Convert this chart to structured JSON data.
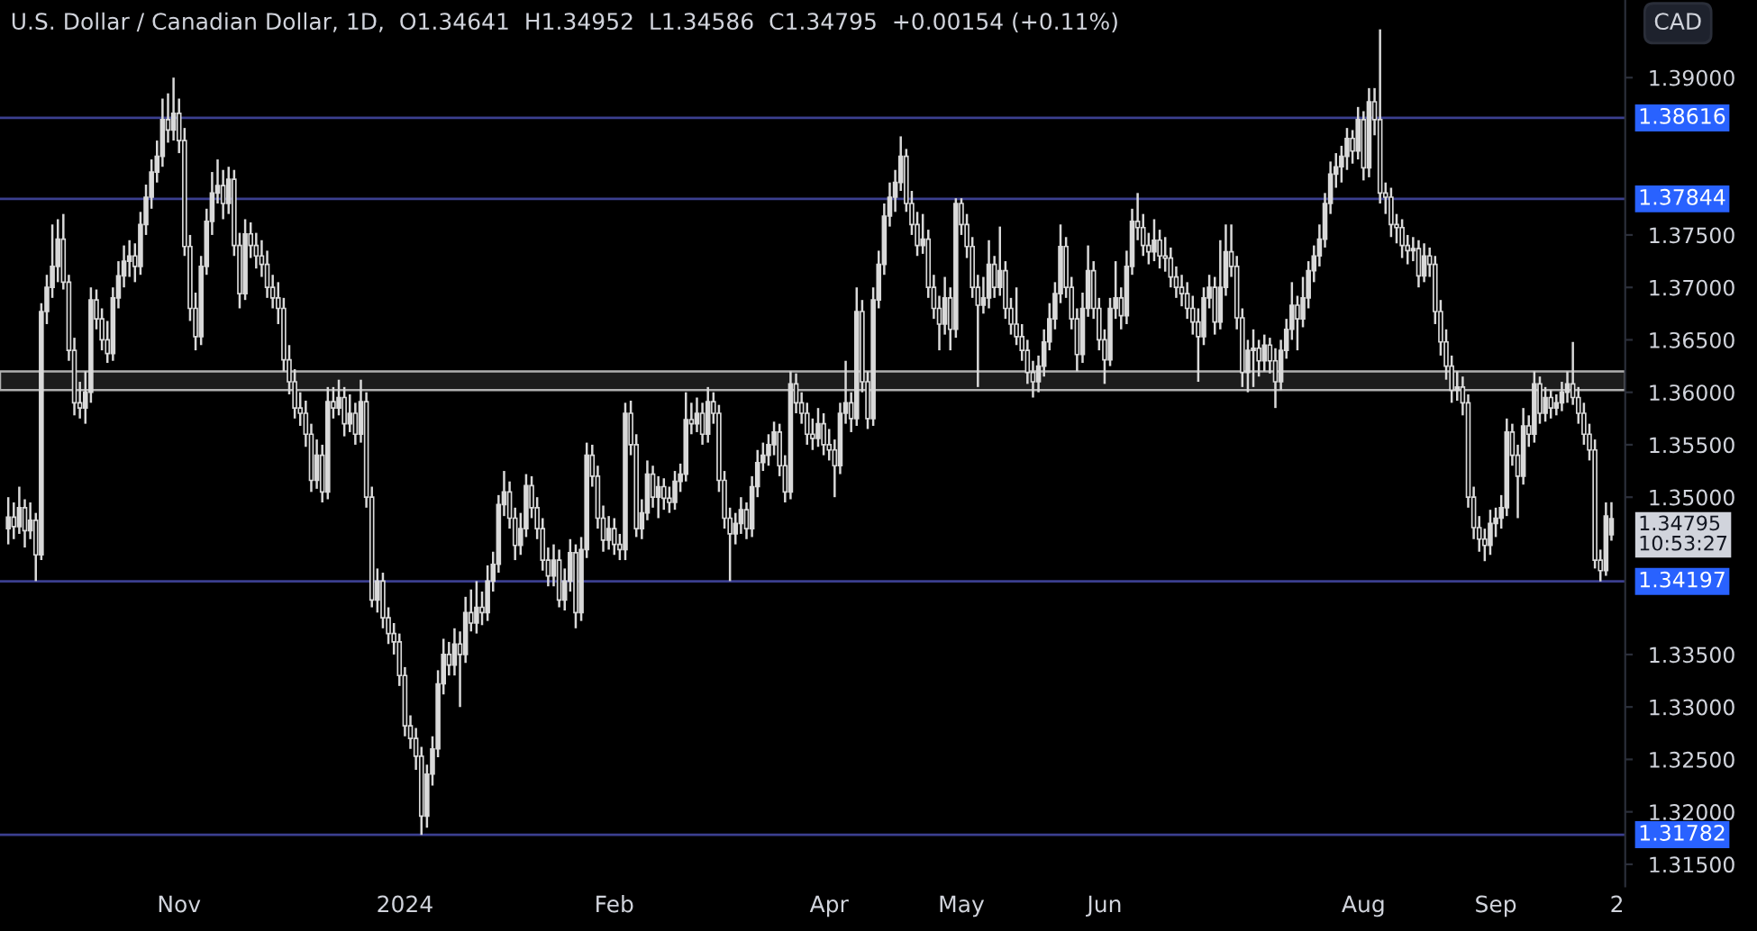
{
  "chart_data": {
    "type": "candlestick",
    "title": "U.S. Dollar / Canadian Dollar, 1D,  O1.34641  H1.34952  L1.34586  C1.34795  +0.00154 (+0.11%)",
    "ylabel": "CAD",
    "color": "#d9d9d9",
    "categories": [
      null,
      null,
      null,
      null,
      null,
      null,
      null,
      null,
      null,
      null,
      null,
      null,
      null,
      null,
      null,
      null,
      null,
      null,
      null,
      null,
      null,
      null,
      null,
      null,
      null,
      null,
      null,
      null,
      null,
      null,
      null,
      "Nov",
      null,
      null,
      null,
      null,
      null,
      null,
      null,
      null,
      null,
      null,
      null,
      null,
      null,
      null,
      null,
      null,
      null,
      null,
      null,
      null,
      null,
      null,
      null,
      null,
      null,
      null,
      null,
      null,
      null,
      null,
      null,
      null,
      null,
      null,
      null,
      null,
      null,
      null,
      null,
      null,
      "2024",
      null,
      null,
      null,
      null,
      null,
      null,
      null,
      null,
      null,
      null,
      null,
      null,
      null,
      null,
      null,
      null,
      null,
      null,
      null,
      null,
      null,
      null,
      null,
      null,
      null,
      null,
      null,
      null,
      null,
      null,
      null,
      null,
      null,
      null,
      null,
      null,
      null,
      "Feb",
      null,
      null,
      null,
      null,
      null,
      null,
      null,
      null,
      null,
      null,
      null,
      null,
      null,
      null,
      null,
      null,
      null,
      null,
      null,
      null,
      null,
      null,
      null,
      null,
      null,
      null,
      null,
      null,
      null,
      null,
      null,
      null,
      null,
      null,
      null,
      null,
      null,
      null,
      "Apr",
      null,
      null,
      null,
      null,
      null,
      null,
      null,
      null,
      null,
      null,
      null,
      null,
      null,
      null,
      null,
      null,
      null,
      null,
      null,
      null,
      null,
      null,
      null,
      "May",
      null,
      null,
      null,
      null,
      null,
      null,
      null,
      null,
      null,
      null,
      null,
      null,
      null,
      null,
      null,
      null,
      null,
      null,
      null,
      null,
      null,
      null,
      null,
      null,
      null,
      "Jun",
      null,
      null,
      null,
      null,
      null,
      null,
      null,
      null,
      null,
      null,
      null,
      null,
      null,
      null,
      null,
      null,
      null,
      null,
      null,
      null,
      null,
      null,
      null,
      null,
      null,
      null,
      null,
      null,
      null,
      null,
      null,
      null,
      null,
      null,
      null,
      null,
      null,
      null,
      null,
      null,
      null,
      null,
      null,
      null,
      null,
      null,
      "Aug",
      null,
      null,
      null,
      null,
      null,
      null,
      null,
      null,
      null,
      null,
      null,
      null,
      null,
      null,
      null,
      null,
      null,
      null,
      null,
      null,
      null,
      null,
      null,
      "Sep",
      null,
      null,
      null,
      null,
      null,
      null,
      null,
      null,
      null,
      null,
      null,
      null,
      null,
      null,
      null,
      null,
      null,
      null,
      null,
      null,
      null,
      "2"
    ],
    "ohlc": [
      [
        1.347,
        1.35,
        1.3455,
        1.3481
      ],
      [
        1.3481,
        1.3495,
        1.346,
        1.3472
      ],
      [
        1.3472,
        1.351,
        1.3465,
        1.349
      ],
      [
        1.349,
        1.3498,
        1.3452,
        1.3468
      ],
      [
        1.3468,
        1.3495,
        1.346,
        1.3478
      ],
      [
        1.3478,
        1.3485,
        1.342,
        1.3445
      ],
      [
        1.3445,
        1.3685,
        1.344,
        1.3677
      ],
      [
        1.3677,
        1.3712,
        1.3665,
        1.37
      ],
      [
        1.37,
        1.376,
        1.369,
        1.372
      ],
      [
        1.372,
        1.3765,
        1.3705,
        1.3746
      ],
      [
        1.3746,
        1.377,
        1.3698,
        1.3705
      ],
      [
        1.3705,
        1.3712,
        1.363,
        1.364
      ],
      [
        1.364,
        1.3652,
        1.3578,
        1.359
      ],
      [
        1.359,
        1.361,
        1.3575,
        1.3585
      ],
      [
        1.3585,
        1.362,
        1.357,
        1.36
      ],
      [
        1.36,
        1.37,
        1.359,
        1.3688
      ],
      [
        1.3688,
        1.3698,
        1.366,
        1.367
      ],
      [
        1.367,
        1.368,
        1.364,
        1.365
      ],
      [
        1.365,
        1.3668,
        1.3628,
        1.3637
      ],
      [
        1.3637,
        1.37,
        1.363,
        1.369
      ],
      [
        1.369,
        1.3725,
        1.368,
        1.3711
      ],
      [
        1.3711,
        1.374,
        1.37,
        1.3725
      ],
      [
        1.3725,
        1.3745,
        1.371,
        1.373
      ],
      [
        1.373,
        1.3742,
        1.3705,
        1.372
      ],
      [
        1.372,
        1.3772,
        1.3712,
        1.376
      ],
      [
        1.376,
        1.3798,
        1.375,
        1.3786
      ],
      [
        1.3786,
        1.3822,
        1.3775,
        1.381
      ],
      [
        1.381,
        1.384,
        1.38,
        1.3825
      ],
      [
        1.3825,
        1.388,
        1.3815,
        1.386
      ],
      [
        1.386,
        1.3885,
        1.3838,
        1.385
      ],
      [
        1.385,
        1.39,
        1.384,
        1.3866
      ],
      [
        1.3866,
        1.388,
        1.3828,
        1.384
      ],
      [
        1.384,
        1.3852,
        1.373,
        1.3739
      ],
      [
        1.3739,
        1.375,
        1.3668,
        1.368
      ],
      [
        1.368,
        1.3695,
        1.364,
        1.3653
      ],
      [
        1.3653,
        1.373,
        1.3645,
        1.372
      ],
      [
        1.372,
        1.3775,
        1.3712,
        1.3763
      ],
      [
        1.3763,
        1.381,
        1.375,
        1.379
      ],
      [
        1.379,
        1.3822,
        1.378,
        1.3797
      ],
      [
        1.3797,
        1.3812,
        1.3765,
        1.378
      ],
      [
        1.378,
        1.3815,
        1.377,
        1.3803
      ],
      [
        1.3803,
        1.3812,
        1.373,
        1.374
      ],
      [
        1.374,
        1.3752,
        1.368,
        1.3694
      ],
      [
        1.3694,
        1.3765,
        1.3688,
        1.3751
      ],
      [
        1.3751,
        1.3762,
        1.3728,
        1.374
      ],
      [
        1.374,
        1.3752,
        1.3718,
        1.373
      ],
      [
        1.373,
        1.3745,
        1.371,
        1.3722
      ],
      [
        1.3722,
        1.3735,
        1.369,
        1.37
      ],
      [
        1.37,
        1.3712,
        1.368,
        1.369
      ],
      [
        1.369,
        1.3705,
        1.3665,
        1.368
      ],
      [
        1.368,
        1.369,
        1.362,
        1.3631
      ],
      [
        1.3631,
        1.3645,
        1.3598,
        1.361
      ],
      [
        1.361,
        1.3622,
        1.3575,
        1.3585
      ],
      [
        1.3585,
        1.36,
        1.3568,
        1.358
      ],
      [
        1.358,
        1.3592,
        1.3548,
        1.356
      ],
      [
        1.356,
        1.357,
        1.3505,
        1.3516
      ],
      [
        1.3516,
        1.3555,
        1.3508,
        1.354
      ],
      [
        1.354,
        1.355,
        1.3495,
        1.3505
      ],
      [
        1.3505,
        1.3605,
        1.3498,
        1.3591
      ],
      [
        1.3591,
        1.3605,
        1.3575,
        1.3585
      ],
      [
        1.3585,
        1.3612,
        1.3578,
        1.3595
      ],
      [
        1.3595,
        1.3605,
        1.3558,
        1.357
      ],
      [
        1.357,
        1.3598,
        1.3562,
        1.358
      ],
      [
        1.358,
        1.359,
        1.355,
        1.356
      ],
      [
        1.356,
        1.3612,
        1.3552,
        1.3591
      ],
      [
        1.3591,
        1.36,
        1.349,
        1.35
      ],
      [
        1.35,
        1.351,
        1.3395,
        1.3402
      ],
      [
        1.3402,
        1.3432,
        1.339,
        1.342
      ],
      [
        1.342,
        1.3428,
        1.3375,
        1.3385
      ],
      [
        1.3385,
        1.3395,
        1.336,
        1.337
      ],
      [
        1.337,
        1.338,
        1.335,
        1.3362
      ],
      [
        1.3362,
        1.337,
        1.332,
        1.333
      ],
      [
        1.333,
        1.3338,
        1.3272,
        1.3282
      ],
      [
        1.3282,
        1.3292,
        1.326,
        1.327
      ],
      [
        1.327,
        1.328,
        1.324,
        1.3253
      ],
      [
        1.3253,
        1.3262,
        1.3178,
        1.3196
      ],
      [
        1.3196,
        1.3245,
        1.3185,
        1.3236
      ],
      [
        1.3236,
        1.3272,
        1.3225,
        1.326
      ],
      [
        1.326,
        1.3335,
        1.3252,
        1.3322
      ],
      [
        1.3322,
        1.3365,
        1.3312,
        1.335
      ],
      [
        1.335,
        1.3362,
        1.333,
        1.334
      ],
      [
        1.334,
        1.3375,
        1.333,
        1.336
      ],
      [
        1.336,
        1.3372,
        1.33,
        1.335
      ],
      [
        1.335,
        1.3405,
        1.3342,
        1.339
      ],
      [
        1.339,
        1.3412,
        1.3372,
        1.338
      ],
      [
        1.338,
        1.342,
        1.337,
        1.3395
      ],
      [
        1.3395,
        1.341,
        1.3378,
        1.339
      ],
      [
        1.339,
        1.3435,
        1.3382,
        1.342
      ],
      [
        1.342,
        1.3448,
        1.341,
        1.3436
      ],
      [
        1.3436,
        1.3502,
        1.3428,
        1.3493
      ],
      [
        1.3493,
        1.3525,
        1.3482,
        1.3505
      ],
      [
        1.3505,
        1.3515,
        1.347,
        1.348
      ],
      [
        1.348,
        1.349,
        1.344,
        1.3454
      ],
      [
        1.3454,
        1.3485,
        1.3445,
        1.347
      ],
      [
        1.347,
        1.3522,
        1.3462,
        1.3511
      ],
      [
        1.3511,
        1.352,
        1.348,
        1.349
      ],
      [
        1.349,
        1.35,
        1.346,
        1.347
      ],
      [
        1.347,
        1.348,
        1.343,
        1.344
      ],
      [
        1.344,
        1.3452,
        1.3415,
        1.3425
      ],
      [
        1.3425,
        1.3455,
        1.3415,
        1.344
      ],
      [
        1.344,
        1.345,
        1.3395,
        1.3402
      ],
      [
        1.3402,
        1.3432,
        1.3392,
        1.342
      ],
      [
        1.342,
        1.346,
        1.341,
        1.3447
      ],
      [
        1.3447,
        1.3455,
        1.3375,
        1.339
      ],
      [
        1.339,
        1.3462,
        1.3382,
        1.345
      ],
      [
        1.345,
        1.3552,
        1.3442,
        1.354
      ],
      [
        1.354,
        1.355,
        1.351,
        1.352
      ],
      [
        1.352,
        1.353,
        1.347,
        1.348
      ],
      [
        1.348,
        1.3492,
        1.3448,
        1.3459
      ],
      [
        1.3459,
        1.3482,
        1.345,
        1.347
      ],
      [
        1.347,
        1.348,
        1.3445,
        1.3455
      ],
      [
        1.3455,
        1.3465,
        1.344,
        1.345
      ],
      [
        1.345,
        1.359,
        1.344,
        1.358
      ],
      [
        1.358,
        1.3592,
        1.354,
        1.355
      ],
      [
        1.355,
        1.356,
        1.3462,
        1.347
      ],
      [
        1.347,
        1.3498,
        1.346,
        1.3485
      ],
      [
        1.3485,
        1.3535,
        1.3478,
        1.3522
      ],
      [
        1.3522,
        1.353,
        1.349,
        1.35
      ],
      [
        1.35,
        1.352,
        1.348,
        1.351
      ],
      [
        1.351,
        1.3518,
        1.3488,
        1.3499
      ],
      [
        1.3499,
        1.351,
        1.3485,
        1.3495
      ],
      [
        1.3495,
        1.3525,
        1.3488,
        1.3515
      ],
      [
        1.3515,
        1.3532,
        1.3505,
        1.3522
      ],
      [
        1.3522,
        1.36,
        1.3515,
        1.3574
      ],
      [
        1.3574,
        1.359,
        1.356,
        1.357
      ],
      [
        1.357,
        1.3595,
        1.3562,
        1.358
      ],
      [
        1.358,
        1.359,
        1.355,
        1.356
      ],
      [
        1.356,
        1.3605,
        1.3552,
        1.3591
      ],
      [
        1.3591,
        1.36,
        1.357,
        1.358
      ],
      [
        1.358,
        1.3588,
        1.3505,
        1.3516
      ],
      [
        1.3516,
        1.3525,
        1.347,
        1.348
      ],
      [
        1.348,
        1.349,
        1.342,
        1.3465
      ],
      [
        1.3465,
        1.3485,
        1.3455,
        1.3475
      ],
      [
        1.3475,
        1.35,
        1.3465,
        1.3488
      ],
      [
        1.3488,
        1.3495,
        1.346,
        1.347
      ],
      [
        1.347,
        1.352,
        1.3462,
        1.351
      ],
      [
        1.351,
        1.3545,
        1.35,
        1.3533
      ],
      [
        1.3533,
        1.3552,
        1.3525,
        1.354
      ],
      [
        1.354,
        1.356,
        1.353,
        1.355
      ],
      [
        1.355,
        1.3572,
        1.354,
        1.3562
      ],
      [
        1.3562,
        1.357,
        1.352,
        1.353
      ],
      [
        1.353,
        1.354,
        1.3495,
        1.3505
      ],
      [
        1.3505,
        1.362,
        1.3498,
        1.3608
      ],
      [
        1.3608,
        1.3618,
        1.358,
        1.359
      ],
      [
        1.359,
        1.36,
        1.357,
        1.358
      ],
      [
        1.358,
        1.359,
        1.355,
        1.356
      ],
      [
        1.356,
        1.3575,
        1.3545,
        1.3556
      ],
      [
        1.3556,
        1.3585,
        1.3548,
        1.357
      ],
      [
        1.357,
        1.358,
        1.354,
        1.355
      ],
      [
        1.355,
        1.3565,
        1.3535,
        1.3545
      ],
      [
        1.3545,
        1.3555,
        1.35,
        1.353
      ],
      [
        1.353,
        1.359,
        1.3522,
        1.358
      ],
      [
        1.358,
        1.363,
        1.357,
        1.359
      ],
      [
        1.359,
        1.36,
        1.3562,
        1.3575
      ],
      [
        1.3575,
        1.37,
        1.3568,
        1.3677
      ],
      [
        1.3677,
        1.3688,
        1.36,
        1.361
      ],
      [
        1.361,
        1.362,
        1.3565,
        1.3575
      ],
      [
        1.3575,
        1.37,
        1.3568,
        1.3688
      ],
      [
        1.3688,
        1.3735,
        1.368,
        1.3722
      ],
      [
        1.3722,
        1.378,
        1.3712,
        1.3768
      ],
      [
        1.3768,
        1.38,
        1.3758,
        1.3786
      ],
      [
        1.3786,
        1.3812,
        1.3772,
        1.38
      ],
      [
        1.38,
        1.3844,
        1.3792,
        1.3825
      ],
      [
        1.3825,
        1.3832,
        1.3772,
        1.378
      ],
      [
        1.378,
        1.3792,
        1.375,
        1.376
      ],
      [
        1.376,
        1.3772,
        1.373,
        1.374
      ],
      [
        1.374,
        1.377,
        1.3732,
        1.3746
      ],
      [
        1.3746,
        1.3755,
        1.369,
        1.37
      ],
      [
        1.37,
        1.3712,
        1.367,
        1.368
      ],
      [
        1.368,
        1.3692,
        1.364,
        1.3665
      ],
      [
        1.3665,
        1.371,
        1.3655,
        1.369
      ],
      [
        1.369,
        1.37,
        1.364,
        1.366
      ],
      [
        1.366,
        1.3785,
        1.3652,
        1.378
      ],
      [
        1.378,
        1.3785,
        1.375,
        1.376
      ],
      [
        1.376,
        1.377,
        1.3728,
        1.3739
      ],
      [
        1.3739,
        1.3748,
        1.369,
        1.37
      ],
      [
        1.37,
        1.3712,
        1.3605,
        1.3683
      ],
      [
        1.3683,
        1.371,
        1.3675,
        1.369
      ],
      [
        1.369,
        1.3745,
        1.368,
        1.3722
      ],
      [
        1.3722,
        1.373,
        1.369,
        1.37
      ],
      [
        1.37,
        1.3758,
        1.3692,
        1.3716
      ],
      [
        1.3716,
        1.3725,
        1.367,
        1.368
      ],
      [
        1.368,
        1.369,
        1.3655,
        1.3665
      ],
      [
        1.3665,
        1.37,
        1.3645,
        1.3653
      ],
      [
        1.3653,
        1.3665,
        1.363,
        1.364
      ],
      [
        1.364,
        1.365,
        1.3608,
        1.3619
      ],
      [
        1.3619,
        1.363,
        1.3595,
        1.361
      ],
      [
        1.361,
        1.3635,
        1.36,
        1.3625
      ],
      [
        1.3625,
        1.366,
        1.3615,
        1.3648
      ],
      [
        1.3648,
        1.3685,
        1.364,
        1.367
      ],
      [
        1.367,
        1.3705,
        1.366,
        1.3694
      ],
      [
        1.3694,
        1.376,
        1.3685,
        1.3739
      ],
      [
        1.3739,
        1.3748,
        1.369,
        1.37
      ],
      [
        1.37,
        1.371,
        1.366,
        1.367
      ],
      [
        1.367,
        1.368,
        1.362,
        1.3636
      ],
      [
        1.3636,
        1.3695,
        1.3628,
        1.368
      ],
      [
        1.368,
        1.374,
        1.3672,
        1.3716
      ],
      [
        1.3716,
        1.3725,
        1.367,
        1.368
      ],
      [
        1.368,
        1.369,
        1.364,
        1.365
      ],
      [
        1.365,
        1.366,
        1.3608,
        1.3631
      ],
      [
        1.3631,
        1.369,
        1.3625,
        1.368
      ],
      [
        1.368,
        1.3725,
        1.367,
        1.369
      ],
      [
        1.369,
        1.37,
        1.366,
        1.3673
      ],
      [
        1.3673,
        1.3735,
        1.3665,
        1.372
      ],
      [
        1.372,
        1.3775,
        1.3712,
        1.3763
      ],
      [
        1.3763,
        1.379,
        1.3745,
        1.3757
      ],
      [
        1.3757,
        1.377,
        1.373,
        1.374
      ],
      [
        1.374,
        1.3752,
        1.3722,
        1.3734
      ],
      [
        1.3734,
        1.3765,
        1.3725,
        1.3745
      ],
      [
        1.3745,
        1.3755,
        1.3718,
        1.373
      ],
      [
        1.373,
        1.3748,
        1.3715,
        1.3728
      ],
      [
        1.3728,
        1.3738,
        1.37,
        1.371
      ],
      [
        1.371,
        1.372,
        1.369,
        1.37
      ],
      [
        1.37,
        1.3712,
        1.3682,
        1.3694
      ],
      [
        1.3694,
        1.3705,
        1.367,
        1.368
      ],
      [
        1.368,
        1.3692,
        1.3655,
        1.3667
      ],
      [
        1.3667,
        1.368,
        1.361,
        1.3653
      ],
      [
        1.3653,
        1.37,
        1.3645,
        1.369
      ],
      [
        1.369,
        1.3712,
        1.368,
        1.37
      ],
      [
        1.37,
        1.371,
        1.3655,
        1.3667
      ],
      [
        1.3667,
        1.3745,
        1.366,
        1.37
      ],
      [
        1.37,
        1.376,
        1.3692,
        1.3734
      ],
      [
        1.3734,
        1.376,
        1.371,
        1.372
      ],
      [
        1.372,
        1.373,
        1.366,
        1.3671
      ],
      [
        1.3671,
        1.368,
        1.3605,
        1.3619
      ],
      [
        1.3619,
        1.365,
        1.36,
        1.364
      ],
      [
        1.364,
        1.366,
        1.3605,
        1.3642
      ],
      [
        1.3642,
        1.365,
        1.3615,
        1.363
      ],
      [
        1.363,
        1.3655,
        1.362,
        1.3645
      ],
      [
        1.3645,
        1.3652,
        1.3618,
        1.363
      ],
      [
        1.363,
        1.3642,
        1.3585,
        1.361
      ],
      [
        1.361,
        1.365,
        1.3602,
        1.364
      ],
      [
        1.364,
        1.367,
        1.3632,
        1.366
      ],
      [
        1.366,
        1.3705,
        1.365,
        1.3683
      ],
      [
        1.3683,
        1.3692,
        1.364,
        1.367
      ],
      [
        1.367,
        1.371,
        1.3662,
        1.369
      ],
      [
        1.369,
        1.3725,
        1.368,
        1.3716
      ],
      [
        1.3716,
        1.374,
        1.3705,
        1.373
      ],
      [
        1.373,
        1.376,
        1.372,
        1.3746
      ],
      [
        1.3746,
        1.379,
        1.3738,
        1.378
      ],
      [
        1.378,
        1.382,
        1.377,
        1.3808
      ],
      [
        1.3808,
        1.3828,
        1.3795,
        1.3815
      ],
      [
        1.3815,
        1.3835,
        1.38,
        1.3825
      ],
      [
        1.3825,
        1.3852,
        1.3812,
        1.3842
      ],
      [
        1.3842,
        1.385,
        1.3818,
        1.383
      ],
      [
        1.383,
        1.3872,
        1.3822,
        1.386
      ],
      [
        1.386,
        1.3868,
        1.3802,
        1.3814
      ],
      [
        1.3814,
        1.389,
        1.3805,
        1.3877
      ],
      [
        1.3877,
        1.389,
        1.3845,
        1.386
      ],
      [
        1.386,
        1.3946,
        1.378,
        1.379
      ],
      [
        1.379,
        1.38,
        1.377,
        1.3786
      ],
      [
        1.3786,
        1.3795,
        1.3748,
        1.376
      ],
      [
        1.376,
        1.377,
        1.3742,
        1.3757
      ],
      [
        1.3757,
        1.3765,
        1.3728,
        1.374
      ],
      [
        1.374,
        1.375,
        1.3722,
        1.3735
      ],
      [
        1.3735,
        1.3748,
        1.3725,
        1.3737
      ],
      [
        1.3737,
        1.3745,
        1.37,
        1.3711
      ],
      [
        1.3711,
        1.3742,
        1.3705,
        1.373
      ],
      [
        1.373,
        1.3738,
        1.371,
        1.3722
      ],
      [
        1.3722,
        1.373,
        1.3665,
        1.3677
      ],
      [
        1.3677,
        1.3688,
        1.3635,
        1.3648
      ],
      [
        1.3648,
        1.366,
        1.3612,
        1.3625
      ],
      [
        1.3625,
        1.3635,
        1.359,
        1.3602
      ],
      [
        1.3602,
        1.362,
        1.3592,
        1.3605
      ],
      [
        1.3605,
        1.3615,
        1.3578,
        1.359
      ],
      [
        1.359,
        1.3598,
        1.349,
        1.35
      ],
      [
        1.35,
        1.351,
        1.346,
        1.3471
      ],
      [
        1.3471,
        1.3482,
        1.3448,
        1.346
      ],
      [
        1.346,
        1.347,
        1.3439,
        1.3454
      ],
      [
        1.3454,
        1.3488,
        1.3445,
        1.3475
      ],
      [
        1.3475,
        1.349,
        1.3462,
        1.348
      ],
      [
        1.348,
        1.3502,
        1.347,
        1.349
      ],
      [
        1.349,
        1.3575,
        1.3482,
        1.3562
      ],
      [
        1.3562,
        1.357,
        1.353,
        1.354
      ],
      [
        1.354,
        1.355,
        1.348,
        1.352
      ],
      [
        1.352,
        1.3585,
        1.3512,
        1.3568
      ],
      [
        1.3568,
        1.3578,
        1.3548,
        1.356
      ],
      [
        1.356,
        1.362,
        1.3552,
        1.3608
      ],
      [
        1.3608,
        1.3615,
        1.357,
        1.358
      ],
      [
        1.358,
        1.3605,
        1.3572,
        1.3595
      ],
      [
        1.3595,
        1.3602,
        1.3575,
        1.3585
      ],
      [
        1.3585,
        1.3598,
        1.3578,
        1.359
      ],
      [
        1.359,
        1.361,
        1.3582,
        1.36
      ],
      [
        1.36,
        1.362,
        1.359,
        1.3608
      ],
      [
        1.3608,
        1.3648,
        1.3588,
        1.3595
      ],
      [
        1.3595,
        1.3605,
        1.357,
        1.358
      ],
      [
        1.358,
        1.359,
        1.355,
        1.356
      ],
      [
        1.356,
        1.357,
        1.3535,
        1.3545
      ],
      [
        1.3545,
        1.3555,
        1.3432,
        1.344
      ],
      [
        1.344,
        1.345,
        1.34197,
        1.343
      ],
      [
        1.343,
        1.3495,
        1.3425,
        1.3482
      ],
      [
        1.34641,
        1.34952,
        1.34586,
        1.34795
      ],
      null
    ],
    "ylim": [
      1.3129,
      1.3974
    ],
    "yticks": [
      {
        "value": 1.315,
        "label": "1.31500"
      },
      {
        "value": 1.32,
        "label": "1.32000"
      },
      {
        "value": 1.325,
        "label": "1.32500"
      },
      {
        "value": 1.33,
        "label": "1.33000"
      },
      {
        "value": 1.335,
        "label": "1.33500"
      },
      {
        "value": 1.35,
        "label": "1.35000"
      },
      {
        "value": 1.355,
        "label": "1.35500"
      },
      {
        "value": 1.36,
        "label": "1.36000"
      },
      {
        "value": 1.365,
        "label": "1.36500"
      },
      {
        "value": 1.37,
        "label": "1.37000"
      },
      {
        "value": 1.375,
        "label": "1.37500"
      },
      {
        "value": 1.39,
        "label": "1.39000"
      }
    ],
    "ref_lines": [
      {
        "axis": "y",
        "value": 1.38616,
        "label": "1.38616",
        "color": "#3b3f8f"
      },
      {
        "axis": "y",
        "value": 1.37844,
        "label": "1.37844",
        "color": "#3b3f8f"
      },
      {
        "axis": "y",
        "value": 1.34197,
        "label": "1.34197",
        "color": "#3b3f8f"
      },
      {
        "axis": "y",
        "value": 1.31782,
        "label": "1.31782",
        "color": "#3b3f8f"
      }
    ],
    "bands": [
      {
        "axis": "y",
        "from": 1.3602,
        "to": 1.362,
        "color": "#b0b0b0"
      }
    ],
    "annotations": [
      "1.34795\n10:53:27"
    ],
    "grid": false
  }
}
